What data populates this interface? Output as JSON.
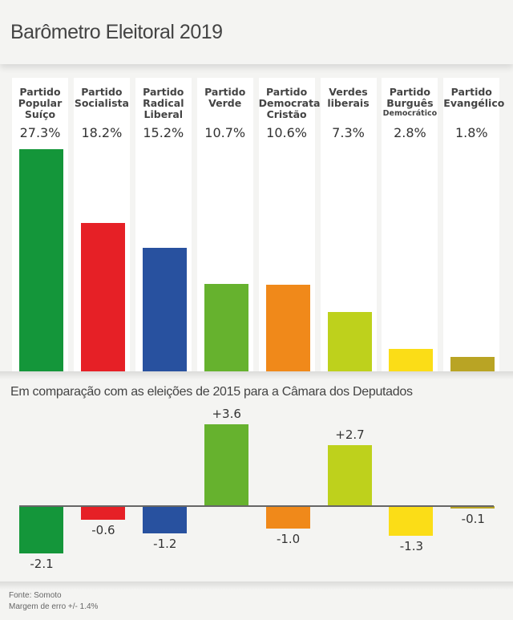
{
  "title": "Barômetro Eleitoral 2019",
  "subtitle": "Em comparação com as eleições de 2015 para a Câmara dos Deputados",
  "footer": {
    "source": "Fonte: Somoto",
    "margin": "Margem de erro +/- 1.4%"
  },
  "chart_data": [
    {
      "type": "bar",
      "title": "Barômetro Eleitoral 2019",
      "xlabel": "",
      "ylabel": "",
      "ylim": [
        0,
        27.3
      ],
      "grid": false,
      "categories": [
        "Partido Popular Suíço",
        "Partido Socialista",
        "Partido Radical Liberal",
        "Partido Verde",
        "Partido Democrata Cristão",
        "Verdes liberais",
        "Partido Burguês Democrático",
        "Partido Evangélico"
      ],
      "label_lines": [
        [
          "Partido",
          "Popular",
          "Suíço"
        ],
        [
          "Partido",
          "Socialista"
        ],
        [
          "Partido",
          "Radical",
          "Liberal"
        ],
        [
          "Partido",
          "Verde"
        ],
        [
          "Partido",
          "Democrata",
          "Cristão"
        ],
        [
          "Verdes",
          "liberais"
        ],
        [
          "Partido",
          "Burguês",
          "Democrático"
        ],
        [
          "Partido",
          "Evangélico"
        ]
      ],
      "values": [
        27.3,
        18.2,
        15.2,
        10.7,
        10.6,
        7.3,
        2.8,
        1.8
      ],
      "value_labels": [
        "27.3%",
        "18.2%",
        "15.2%",
        "10.7%",
        "10.6%",
        "7.3%",
        "2.8%",
        "1.8%"
      ],
      "colors": [
        "#14963a",
        "#e62026",
        "#28519f",
        "#66b22e",
        "#f0891a",
        "#bed11c",
        "#fbdd17",
        "#b9a424"
      ]
    },
    {
      "type": "bar",
      "title": "Em comparação com as eleições de 2015 para a Câmara dos Deputados",
      "xlabel": "",
      "ylabel": "",
      "ylim": [
        -2.1,
        3.6
      ],
      "grid": false,
      "categories": [
        "Partido Popular Suíço",
        "Partido Socialista",
        "Partido Radical Liberal",
        "Partido Verde",
        "Partido Democrata Cristão",
        "Verdes liberais",
        "Partido Burguês Democrático",
        "Partido Evangélico"
      ],
      "values": [
        -2.1,
        -0.6,
        -1.2,
        3.6,
        -1.0,
        2.7,
        -1.3,
        -0.1
      ],
      "value_labels": [
        "-2.1",
        "-0.6",
        "-1.2",
        "+3.6",
        "-1.0",
        "+2.7",
        "-1.3",
        "-0.1"
      ],
      "colors": [
        "#14963a",
        "#e62026",
        "#28519f",
        "#66b22e",
        "#f0891a",
        "#bed11c",
        "#fbdd17",
        "#b9a424"
      ]
    }
  ]
}
